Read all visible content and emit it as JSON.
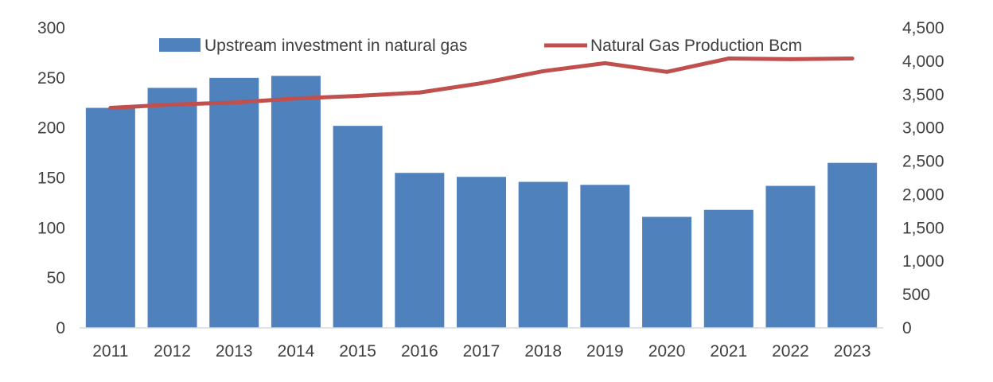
{
  "chart_data": {
    "type": "bar",
    "title": "",
    "xlabel": "",
    "ylabel": "",
    "y2label": "",
    "categories": [
      "2011",
      "2012",
      "2013",
      "2014",
      "2015",
      "2016",
      "2017",
      "2018",
      "2019",
      "2020",
      "2021",
      "2022",
      "2023"
    ],
    "series": [
      {
        "name": "Upstream investment in natural gas",
        "type": "bar",
        "axis": "left",
        "color": "#4F81BD",
        "values": [
          220,
          240,
          250,
          252,
          202,
          155,
          151,
          146,
          143,
          111,
          118,
          142,
          165
        ]
      },
      {
        "name": "Natural Gas Production Bcm",
        "type": "line",
        "axis": "right",
        "color": "#C0504D",
        "values": [
          3300,
          3350,
          3380,
          3440,
          3480,
          3530,
          3670,
          3850,
          3970,
          3840,
          4040,
          4030,
          4040
        ]
      }
    ],
    "ylim": [
      0,
      300
    ],
    "y2lim": [
      0,
      4500
    ],
    "yticks": [
      "0",
      "50",
      "100",
      "150",
      "200",
      "250",
      "300"
    ],
    "y2ticks": [
      "0",
      "500",
      "1,000",
      "1,500",
      "2,000",
      "2,500",
      "3,000",
      "3,500",
      "4,000",
      "4,500"
    ],
    "grid": false,
    "legend_position": "top"
  }
}
